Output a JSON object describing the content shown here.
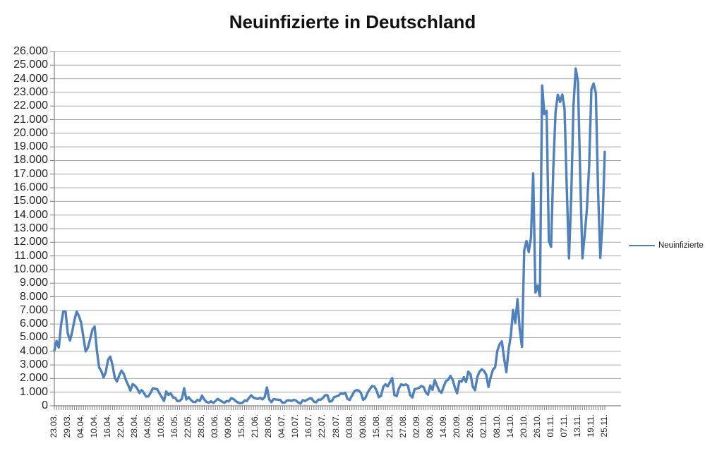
{
  "title": "Neuinfizierte in Deutschland",
  "legend": {
    "label": "Neuinfizierte"
  },
  "colors": {
    "series_line": "#4F81BD",
    "gridline": "#A6A6A6",
    "axis_line": "#808080",
    "text": "#262626",
    "background": "#FFFFFF"
  },
  "chart_data": {
    "type": "line",
    "title": "Neuinfizierte in Deutschland",
    "ylabel": "",
    "xlabel": "",
    "ylim": [
      0,
      26000
    ],
    "y_tick_step": 1000,
    "grid": "horizontal-major",
    "legend_position": "right",
    "y_tick_labels": [
      "0",
      "1.000",
      "2.000",
      "3.000",
      "4.000",
      "5.000",
      "6.000",
      "7.000",
      "8.000",
      "9.000",
      "10.000",
      "11.000",
      "12.000",
      "13.000",
      "14.000",
      "15.000",
      "16.000",
      "17.000",
      "18.000",
      "19.000",
      "20.000",
      "21.000",
      "22.000",
      "23.000",
      "24.000",
      "25.000",
      "26.000"
    ],
    "x_tick_labels": [
      "23.03.",
      "29.03.",
      "04.04.",
      "10.04.",
      "16.04.",
      "22.04.",
      "28.04.",
      "04.05.",
      "10.05.",
      "16.05.",
      "22.05.",
      "28.05.",
      "03.06.",
      "09.06.",
      "15.06.",
      "21.06.",
      "28.06.",
      "04.07.",
      "10.07.",
      "16.07.",
      "22.07.",
      "28.07.",
      "03.08.",
      "09.08.",
      "15.08.",
      "21.08.",
      "27.08.",
      "02.09.",
      "08.09.",
      "14.09.",
      "20.09.",
      "26.09.",
      "02.10.",
      "08.10.",
      "14.10.",
      "20.10.",
      "26.10.",
      "01.11.",
      "07.11.",
      "13.11.",
      "19.11.",
      "25.11."
    ],
    "x_label_every_n_points": 6,
    "series": [
      {
        "name": "Neuinfizierte",
        "color": "#4F81BD",
        "values": [
          4062,
          4764,
          4277,
          5940,
          6924,
          6922,
          5320,
          4789,
          5453,
          6290,
          6922,
          6585,
          6082,
          5020,
          3990,
          4270,
          4900,
          5570,
          5820,
          4090,
          2821,
          2537,
          2082,
          2486,
          3380,
          3609,
          2980,
          2055,
          1785,
          2237,
          2580,
          2352,
          1880,
          1520,
          1115,
          1595,
          1478,
          1275,
          945,
          1147,
          945,
          679,
          685,
          947,
          1284,
          1251,
          1209,
          913,
          638,
          357,
          1050,
          798,
          913,
          620,
          583,
          342,
          358,
          513,
          1284,
          460,
          638,
          431,
          289,
          271,
          432,
          353,
          741,
          460,
          286,
          221,
          333,
          213,
          342,
          507,
          407,
          301,
          214,
          350,
          318,
          555,
          498,
          348,
          252,
          192,
          210,
          378,
          345,
          580,
          770,
          601,
          537,
          503,
          587,
          470,
          630,
          1350,
          477,
          262,
          498,
          466,
          446,
          422,
          219,
          239,
          390,
          397,
          356,
          442,
          378,
          248,
          159,
          412,
          351,
          444,
          534,
          529,
          305,
          249,
          454,
          445,
          569,
          769,
          781,
          305,
          340,
          633,
          684,
          741,
          902,
          870,
          955,
          509,
          432,
          741,
          1045,
          1147,
          1122,
          955,
          436,
          561,
          966,
          1226,
          1445,
          1415,
          1122,
          625,
          733,
          1390,
          1576,
          1427,
          1737,
          2034,
          782,
          711,
          1278,
          1576,
          1507,
          1571,
          1479,
          785,
          610,
          1218,
          1256,
          1311,
          1453,
          1378,
          988,
          814,
          1499,
          1176,
          1892,
          1484,
          1104,
          948,
          1407,
          1821,
          1901,
          2194,
          1916,
          1345,
          922,
          1821,
          1769,
          2089,
          1744,
          2507,
          2303,
          1411,
          1144,
          2089,
          2503,
          2673,
          2563,
          2279,
          1382,
          2089,
          2639,
          2828,
          4058,
          4516,
          4721,
          3483,
          2467,
          4122,
          5132,
          7030,
          6100,
          7830,
          5587,
          4325,
          11409,
          12093,
          11287,
          12331,
          17051,
          8312,
          8824,
          8042,
          23502,
          21407,
          21634,
          12087,
          11664,
          17477,
          21565,
          22829,
          22300,
          22850,
          21800,
          16017,
          10819,
          15332,
          22000,
          24752,
          23800,
          17000,
          10824,
          12500,
          14419,
          17561,
          23223,
          23648,
          22964,
          15741,
          10864,
          13554,
          18633
        ]
      }
    ]
  }
}
